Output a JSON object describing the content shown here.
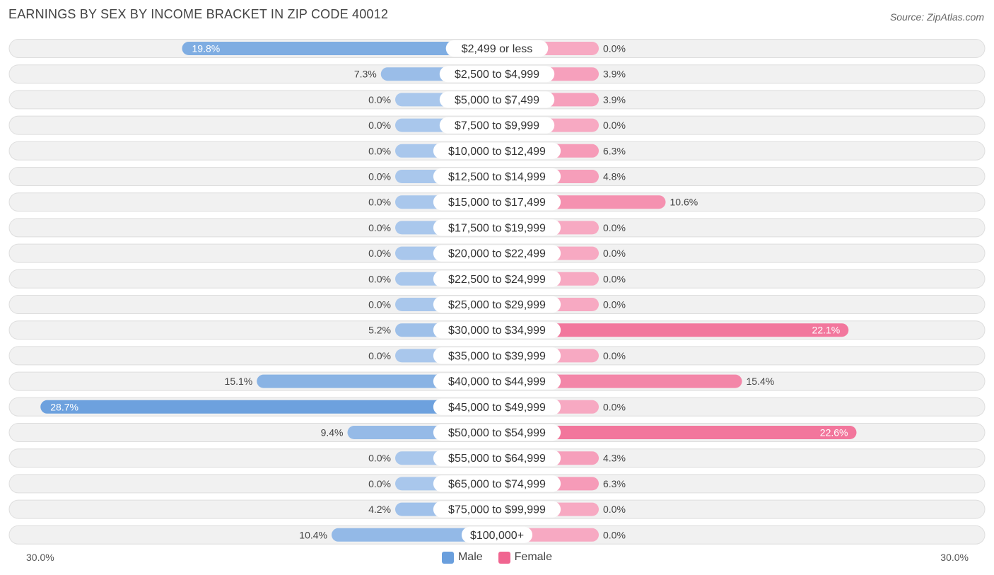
{
  "title": "EARNINGS BY SEX BY INCOME BRACKET IN ZIP CODE 40012",
  "source": "Source: ZipAtlas.com",
  "legend": {
    "male_label": "Male",
    "female_label": "Female"
  },
  "axis": {
    "left_label": "30.0%",
    "right_label": "30.0%"
  },
  "colors": {
    "male_dark": "#6a9fdd",
    "male_light": "#a9c7ec",
    "female_dark": "#f06590",
    "female_light": "#f7a9c2",
    "row_bg": "#f1f1f1",
    "row_border": "#dedede"
  },
  "chart_data": {
    "type": "bar",
    "orientation": "horizontal-diverging",
    "title": "EARNINGS BY SEX BY INCOME BRACKET IN ZIP CODE 40012",
    "xlim": [
      -30,
      30
    ],
    "categories": [
      "$2,499 or less",
      "$2,500 to $4,999",
      "$5,000 to $7,499",
      "$7,500 to $9,999",
      "$10,000 to $12,499",
      "$12,500 to $14,999",
      "$15,000 to $17,499",
      "$17,500 to $19,999",
      "$20,000 to $22,499",
      "$22,500 to $24,999",
      "$25,000 to $29,999",
      "$30,000 to $34,999",
      "$35,000 to $39,999",
      "$40,000 to $44,999",
      "$45,000 to $49,999",
      "$50,000 to $54,999",
      "$55,000 to $64,999",
      "$65,000 to $74,999",
      "$75,000 to $99,999",
      "$100,000+"
    ],
    "series": [
      {
        "name": "Male",
        "values": [
          19.8,
          7.3,
          0.0,
          0.0,
          0.0,
          0.0,
          0.0,
          0.0,
          0.0,
          0.0,
          0.0,
          5.2,
          0.0,
          15.1,
          28.7,
          9.4,
          0.0,
          0.0,
          4.2,
          10.4
        ],
        "labels": [
          "19.8%",
          "7.3%",
          "0.0%",
          "0.0%",
          "0.0%",
          "0.0%",
          "0.0%",
          "0.0%",
          "0.0%",
          "0.0%",
          "0.0%",
          "5.2%",
          "0.0%",
          "15.1%",
          "28.7%",
          "9.4%",
          "0.0%",
          "0.0%",
          "4.2%",
          "10.4%"
        ]
      },
      {
        "name": "Female",
        "values": [
          0.0,
          3.9,
          3.9,
          0.0,
          6.3,
          4.8,
          10.6,
          0.0,
          0.0,
          0.0,
          0.0,
          22.1,
          0.0,
          15.4,
          0.0,
          22.6,
          4.3,
          6.3,
          0.0,
          0.0
        ],
        "labels": [
          "0.0%",
          "3.9%",
          "3.9%",
          "0.0%",
          "6.3%",
          "4.8%",
          "10.6%",
          "0.0%",
          "0.0%",
          "0.0%",
          "0.0%",
          "22.1%",
          "0.0%",
          "15.4%",
          "0.0%",
          "22.6%",
          "4.3%",
          "6.3%",
          "0.0%",
          "0.0%"
        ]
      }
    ]
  }
}
